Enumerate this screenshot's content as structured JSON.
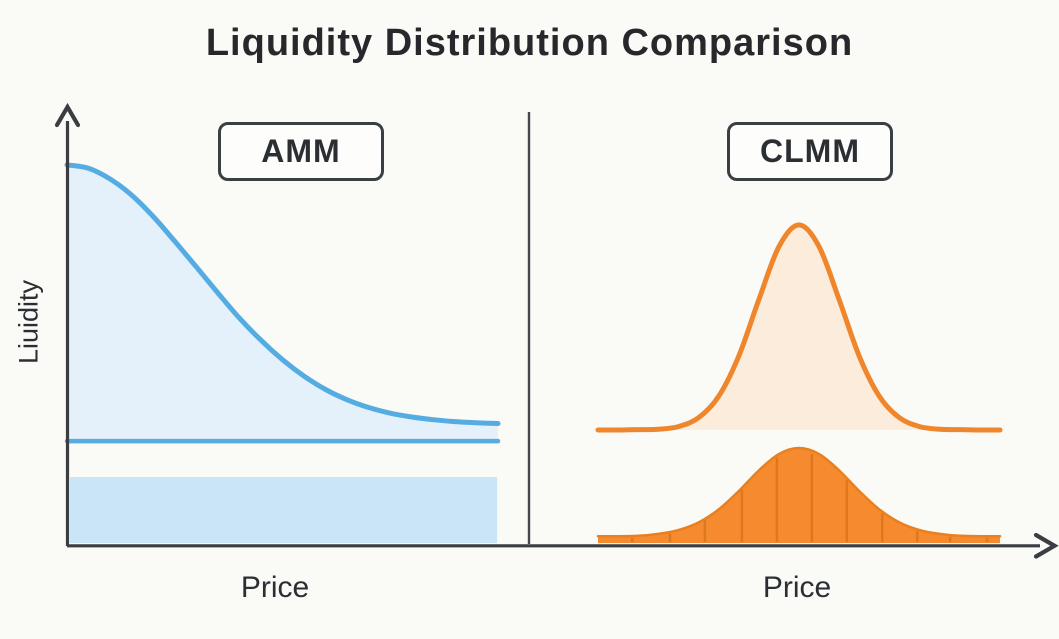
{
  "title": "Liquidity Distribution Comparison",
  "y_axis_label": "Liuidity",
  "panels": {
    "amm": {
      "label": "AMM",
      "x_axis_label": "Price"
    },
    "clmm": {
      "label": "CLMM",
      "x_axis_label": "Price"
    }
  },
  "colors": {
    "bg": "#FAFAF6",
    "ink": "#26282B",
    "ink2": "#2B2F33",
    "axis": "#3A3E42",
    "divider": "#44484C",
    "box_border": "#3A3F44",
    "box_bg": "#FDFDFC",
    "blue_stroke": "#55ACE2",
    "blue_fill": "#E4F1FA",
    "blue_band": "#C9E5F6",
    "orange_stroke": "#F0862C",
    "orange_fill_light": "#FBECDB",
    "orange_solid": "#F68A2E",
    "orange_outline": "#E8801F",
    "orange_dark": "#DE7820"
  },
  "chart_data": [
    {
      "id": "amm",
      "panel_label": "AMM",
      "type": "area",
      "xlabel": "Price",
      "ylabel": "Liuidity",
      "y_scale": "normalized 0-1 of y-axis height",
      "x_normalized": [
        0,
        0.05,
        0.1,
        0.15,
        0.2,
        0.25,
        0.3,
        0.35,
        0.4,
        0.45,
        0.5,
        0.55,
        0.6,
        0.65,
        0.7,
        0.75,
        0.8,
        0.85,
        0.9,
        0.95,
        1
      ],
      "series": [
        {
          "name": "amm-liquidity-curve",
          "style": "line_area",
          "values": [
            0.995,
            0.986,
            0.958,
            0.916,
            0.86,
            0.795,
            0.728,
            0.66,
            0.594,
            0.536,
            0.485,
            0.442,
            0.407,
            0.38,
            0.36,
            0.345,
            0.335,
            0.328,
            0.323,
            0.32,
            0.318
          ],
          "baseline": 0.272,
          "stroke": "blue_stroke",
          "fill": "blue_fill",
          "stroke_width": 5
        },
        {
          "name": "amm-constant-liquidity-line",
          "style": "hline",
          "value": 0.272,
          "stroke": "blue_stroke",
          "stroke_width": 4.5
        },
        {
          "name": "amm-uniform-liquidity-band",
          "style": "band",
          "x_from": 0.007,
          "x_to": 0.998,
          "value_from": 0.005,
          "value_to": 0.178,
          "fill": "blue_band"
        }
      ]
    },
    {
      "id": "clmm",
      "panel_label": "CLMM",
      "type": "area",
      "xlabel": "Price",
      "y_scale": "normalized 0-1 of y-axis height",
      "x_normalized": [
        0,
        0.05,
        0.1,
        0.15,
        0.2,
        0.25,
        0.3,
        0.35,
        0.4,
        0.45,
        0.5,
        0.55,
        0.6,
        0.65,
        0.7,
        0.75,
        0.8,
        0.85,
        0.9,
        0.95,
        1
      ],
      "series": [
        {
          "name": "clmm-concentrated-liquidity-outline",
          "style": "line_area",
          "values": [
            0.301,
            0.301,
            0.302,
            0.303,
            0.31,
            0.333,
            0.389,
            0.494,
            0.642,
            0.781,
            0.838,
            0.781,
            0.642,
            0.494,
            0.389,
            0.333,
            0.31,
            0.303,
            0.302,
            0.301,
            0.301
          ],
          "baseline": 0.301,
          "stroke": "orange_stroke",
          "fill": "orange_fill_light",
          "stroke_width": 5
        },
        {
          "name": "clmm-concentrated-liquidity-filled",
          "style": "line_area",
          "values": [
            0.023,
            0.023,
            0.024,
            0.029,
            0.039,
            0.059,
            0.093,
            0.141,
            0.195,
            0.238,
            0.254,
            0.238,
            0.195,
            0.141,
            0.093,
            0.059,
            0.039,
            0.029,
            0.024,
            0.023,
            0.023
          ],
          "baseline": 0.005,
          "stroke": "orange_outline",
          "fill": "orange_solid",
          "stroke_width": 2.5
        },
        {
          "name": "clmm-liquidity-bin-lines",
          "style": "vlines",
          "x_positions": [
            0.085,
            0.179,
            0.266,
            0.358,
            0.445,
            0.532,
            0.619,
            0.707,
            0.794,
            0.876,
            0.968
          ],
          "on_series": 1,
          "stroke": "orange_dark",
          "stroke_width": 2.5
        }
      ]
    }
  ]
}
